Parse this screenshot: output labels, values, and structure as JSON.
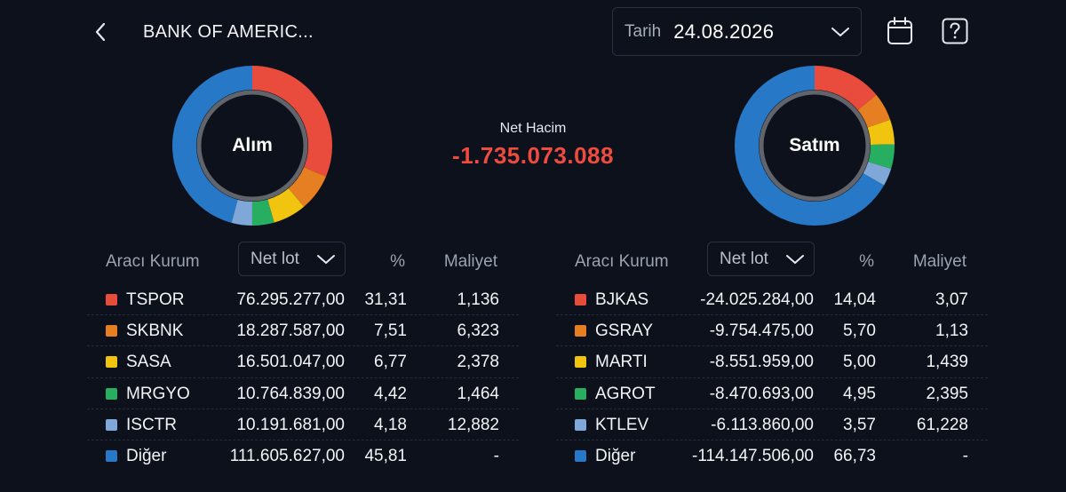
{
  "header": {
    "title": "BANK OF AMERIC...",
    "date_label": "Tarih",
    "date_value": "24.08.2026"
  },
  "icons": {
    "back": "chevron-left-icon",
    "date_dropdown": "chevron-down-icon",
    "calendar": "calendar-icon",
    "help": "help-icon"
  },
  "summary": {
    "net_volume_label": "Net Hacim",
    "net_volume_value": "-1.735.073.088"
  },
  "colors": {
    "background": "#0d111b",
    "negative": "#ef4b3f",
    "tspor": "#e94b3c",
    "skbnk": "#e67e22",
    "sasa": "#f1c40f",
    "mrgyo": "#27ae60",
    "isctr": "#7fa8d8",
    "diger": "#2878c8"
  },
  "buy": {
    "chart_label": "Alım",
    "columns": {
      "broker": "Aracı Kurum",
      "lot_select": "Net lot",
      "percent": "%",
      "cost": "Maliyet"
    },
    "rows": [
      {
        "code": "TSPOR",
        "lot": "76.295.277,00",
        "percent": "31,31",
        "cost": "1,136",
        "color": "#e94b3c",
        "share": 31.31
      },
      {
        "code": "SKBNK",
        "lot": "18.287.587,00",
        "percent": "7,51",
        "cost": "6,323",
        "color": "#e67e22",
        "share": 7.51
      },
      {
        "code": "SASA",
        "lot": "16.501.047,00",
        "percent": "6,77",
        "cost": "2,378",
        "color": "#f1c40f",
        "share": 6.77
      },
      {
        "code": "MRGYO",
        "lot": "10.764.839,00",
        "percent": "4,42",
        "cost": "1,464",
        "color": "#27ae60",
        "share": 4.42
      },
      {
        "code": "ISCTR",
        "lot": "10.191.681,00",
        "percent": "4,18",
        "cost": "12,882",
        "color": "#7fa8d8",
        "share": 4.18
      },
      {
        "code": "Diğer",
        "lot": "111.605.627,00",
        "percent": "45,81",
        "cost": "-",
        "color": "#2878c8",
        "share": 45.81
      }
    ]
  },
  "sell": {
    "chart_label": "Satım",
    "columns": {
      "broker": "Aracı Kurum",
      "lot_select": "Net lot",
      "percent": "%",
      "cost": "Maliyet"
    },
    "rows": [
      {
        "code": "BJKAS",
        "lot": "-24.025.284,00",
        "percent": "14,04",
        "cost": "3,07",
        "color": "#e94b3c",
        "share": 14.04
      },
      {
        "code": "GSRAY",
        "lot": "-9.754.475,00",
        "percent": "5,70",
        "cost": "1,13",
        "color": "#e67e22",
        "share": 5.7
      },
      {
        "code": "MARTI",
        "lot": "-8.551.959,00",
        "percent": "5,00",
        "cost": "1,439",
        "color": "#f1c40f",
        "share": 5.0
      },
      {
        "code": "AGROT",
        "lot": "-8.470.693,00",
        "percent": "4,95",
        "cost": "2,395",
        "color": "#27ae60",
        "share": 4.95
      },
      {
        "code": "KTLEV",
        "lot": "-6.113.860,00",
        "percent": "3,57",
        "cost": "61,228",
        "color": "#7fa8d8",
        "share": 3.57
      },
      {
        "code": "Diğer",
        "lot": "-114.147.506,00",
        "percent": "66,73",
        "cost": "-",
        "color": "#2878c8",
        "share": 66.73
      }
    ]
  }
}
